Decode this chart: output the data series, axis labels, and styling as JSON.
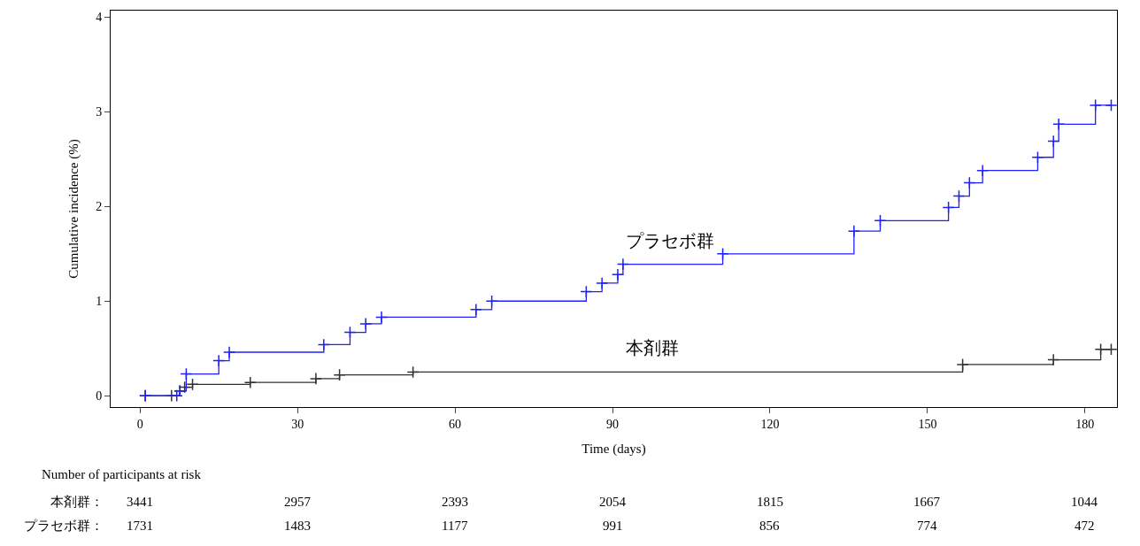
{
  "chart_data": {
    "type": "step",
    "xlabel": "Time (days)",
    "ylabel": "Cumulative incidence (%)",
    "xlim": [
      -5.6,
      186.1
    ],
    "ylim": [
      -0.12,
      4.07
    ],
    "xticks": [
      0,
      30,
      60,
      90,
      120,
      150,
      180
    ],
    "yticks": [
      0,
      1,
      2,
      3,
      4
    ],
    "marker": "cross",
    "line_style": "solid",
    "series": [
      {
        "name": "本剤群",
        "color": "#333333",
        "x": [
          1,
          6,
          7.6,
          8.5,
          10,
          21,
          33.5,
          38,
          52,
          156.7,
          174,
          183,
          185
        ],
        "values": [
          0,
          0,
          0.05,
          0.09,
          0.12,
          0.14,
          0.18,
          0.22,
          0.25,
          0.33,
          0.38,
          0.49,
          0.49
        ]
      },
      {
        "name": "プラセボ群",
        "color": "#2020ff",
        "x": [
          1,
          7,
          7.6,
          8.8,
          15,
          17,
          35,
          40,
          43,
          46,
          64,
          67,
          85,
          88,
          91,
          92,
          111,
          136,
          141,
          154,
          156,
          158,
          160.5,
          171,
          174,
          175,
          182,
          185
        ],
        "values": [
          0,
          0,
          0.05,
          0.23,
          0.37,
          0.46,
          0.54,
          0.67,
          0.76,
          0.83,
          0.91,
          1.0,
          1.1,
          1.19,
          1.28,
          1.39,
          1.5,
          1.74,
          1.85,
          1.99,
          2.11,
          2.25,
          2.38,
          2.52,
          2.69,
          2.87,
          3.07,
          3.07
        ]
      }
    ],
    "annotations": [
      "Number of participants at risk",
      "本剤群：",
      "3441",
      "2957",
      "2393",
      "2054",
      "1815",
      "1667",
      "1044",
      "プラセボ群：",
      "1731",
      "1483",
      "1177",
      "991",
      "856",
      "774",
      "472"
    ]
  }
}
